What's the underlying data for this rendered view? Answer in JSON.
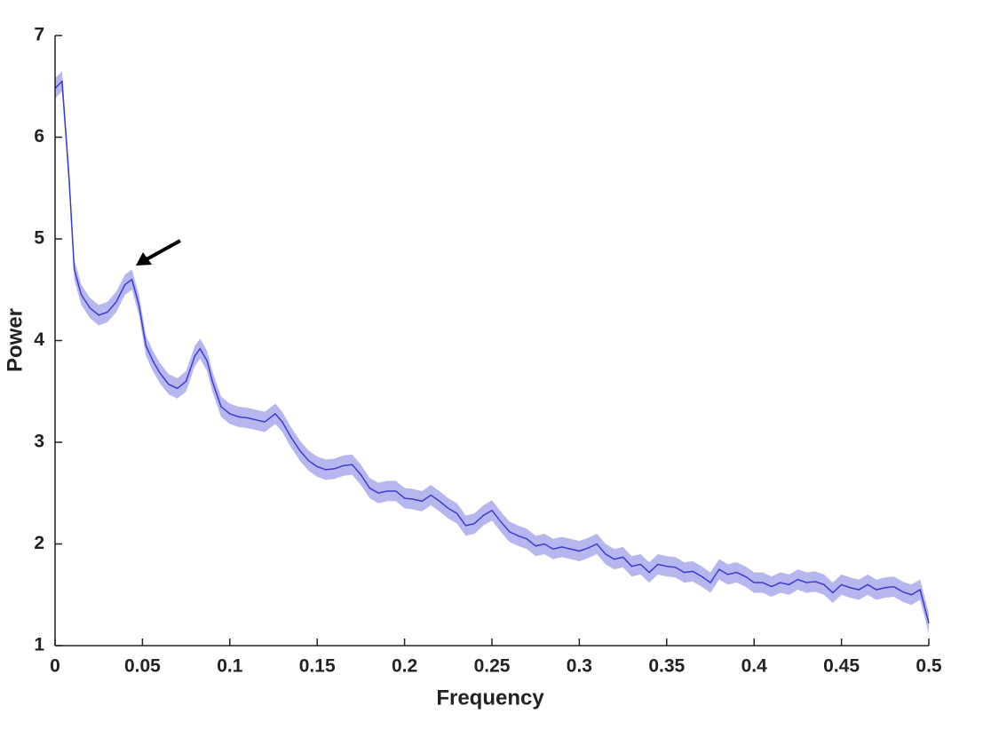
{
  "chart_data": {
    "type": "line",
    "xlabel": "Frequency",
    "ylabel": "Power",
    "x": [
      0,
      0.004,
      0.008,
      0.011,
      0.015,
      0.02,
      0.025,
      0.03,
      0.035,
      0.04,
      0.044,
      0.048,
      0.052,
      0.056,
      0.06,
      0.065,
      0.07,
      0.075,
      0.08,
      0.083,
      0.087,
      0.09,
      0.095,
      0.1,
      0.105,
      0.11,
      0.115,
      0.12,
      0.126,
      0.13,
      0.135,
      0.14,
      0.145,
      0.15,
      0.155,
      0.16,
      0.165,
      0.17,
      0.175,
      0.18,
      0.185,
      0.19,
      0.195,
      0.2,
      0.205,
      0.21,
      0.215,
      0.22,
      0.225,
      0.23,
      0.235,
      0.24,
      0.245,
      0.25,
      0.255,
      0.26,
      0.265,
      0.27,
      0.275,
      0.28,
      0.285,
      0.29,
      0.295,
      0.3,
      0.305,
      0.31,
      0.315,
      0.32,
      0.325,
      0.33,
      0.335,
      0.34,
      0.345,
      0.35,
      0.355,
      0.36,
      0.365,
      0.37,
      0.375,
      0.38,
      0.385,
      0.39,
      0.395,
      0.4,
      0.405,
      0.41,
      0.415,
      0.42,
      0.425,
      0.43,
      0.435,
      0.44,
      0.445,
      0.45,
      0.455,
      0.46,
      0.465,
      0.47,
      0.475,
      0.48,
      0.485,
      0.49,
      0.495,
      0.5
    ],
    "values": [
      6.48,
      6.55,
      5.6,
      4.7,
      4.45,
      4.32,
      4.25,
      4.28,
      4.38,
      4.55,
      4.6,
      4.35,
      3.95,
      3.8,
      3.68,
      3.57,
      3.53,
      3.6,
      3.85,
      3.92,
      3.8,
      3.6,
      3.35,
      3.28,
      3.25,
      3.24,
      3.22,
      3.2,
      3.28,
      3.2,
      3.05,
      2.92,
      2.82,
      2.76,
      2.73,
      2.74,
      2.77,
      2.78,
      2.68,
      2.55,
      2.5,
      2.52,
      2.52,
      2.45,
      2.44,
      2.42,
      2.48,
      2.42,
      2.35,
      2.3,
      2.18,
      2.2,
      2.28,
      2.33,
      2.22,
      2.12,
      2.08,
      2.05,
      1.98,
      2.0,
      1.95,
      1.97,
      1.95,
      1.93,
      1.96,
      2.0,
      1.9,
      1.85,
      1.87,
      1.78,
      1.8,
      1.72,
      1.8,
      1.78,
      1.77,
      1.72,
      1.73,
      1.68,
      1.62,
      1.75,
      1.7,
      1.72,
      1.68,
      1.62,
      1.62,
      1.58,
      1.62,
      1.6,
      1.65,
      1.62,
      1.63,
      1.6,
      1.52,
      1.6,
      1.57,
      1.55,
      1.6,
      1.55,
      1.57,
      1.58,
      1.53,
      1.5,
      1.55,
      1.22
    ],
    "band": 0.1,
    "color": "#3b3bd6",
    "band_color": "#b7b7f0",
    "xlim": [
      0,
      0.5
    ],
    "ylim": [
      1,
      7
    ],
    "xticks": [
      0,
      0.05,
      0.1,
      0.15,
      0.2,
      0.25,
      0.3,
      0.35,
      0.4,
      0.45,
      0.5
    ],
    "yticks": [
      1,
      2,
      3,
      4,
      5,
      6,
      7
    ]
  }
}
